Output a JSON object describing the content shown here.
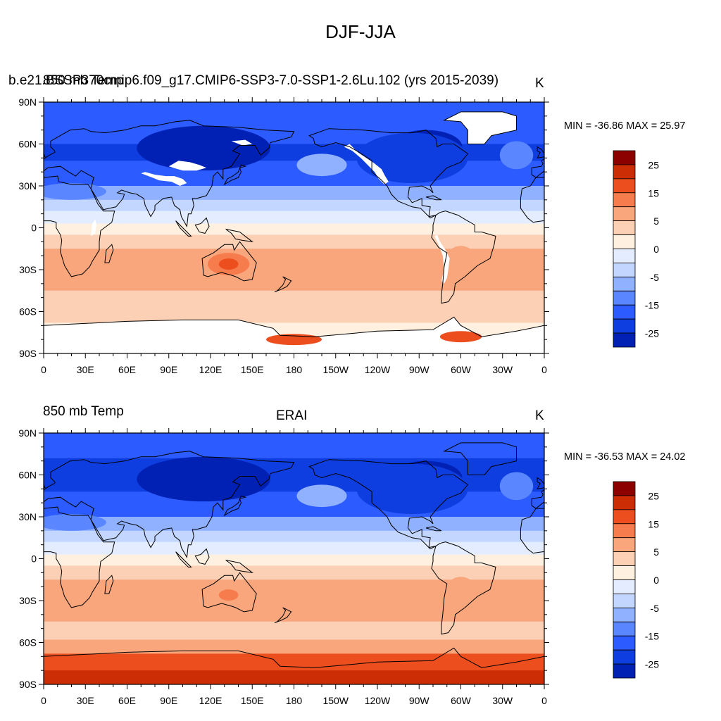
{
  "title": "DJF-JJA",
  "colors": [
    "#0a0a8c",
    "#0021b3",
    "#0f3ee0",
    "#2c5bff",
    "#5a86ff",
    "#8fb1ff",
    "#c2d6ff",
    "#e4edff",
    "#fff0e0",
    "#fcd0b4",
    "#f9a67c",
    "#f67b4d",
    "#ed4e1e",
    "#cc2d05",
    "#8c0000"
  ],
  "contour_levels": [
    -30,
    -25,
    -20,
    -15,
    -10,
    -5,
    0,
    5,
    10,
    15,
    20,
    25,
    30
  ],
  "colorbar_labels": [
    "25",
    "15",
    "5",
    "0",
    "-5",
    "-15",
    "-25"
  ],
  "lat_labels": [
    "90N",
    "60N",
    "30N",
    "0",
    "30S",
    "60S",
    "90S"
  ],
  "lon_labels": [
    "0",
    "30E",
    "60E",
    "90E",
    "120E",
    "150E",
    "180",
    "150W",
    "120W",
    "90W",
    "60W",
    "30W",
    "0"
  ],
  "panels": [
    {
      "left_label": "850 mb Temp",
      "center_label": "b.e21.BSSP370cmip6.f09_g17.CMIP6-SSP3-7.0-SSP1-2.6Lu.102 (yrs 2015-2039)",
      "right_label": "K",
      "stats": "MIN = -36.86 MAX =  25.97"
    },
    {
      "left_label": "850 mb Temp",
      "center_label": "ERAI",
      "right_label": "K",
      "stats": "MIN = -36.53 MAX =  24.02"
    }
  ]
}
